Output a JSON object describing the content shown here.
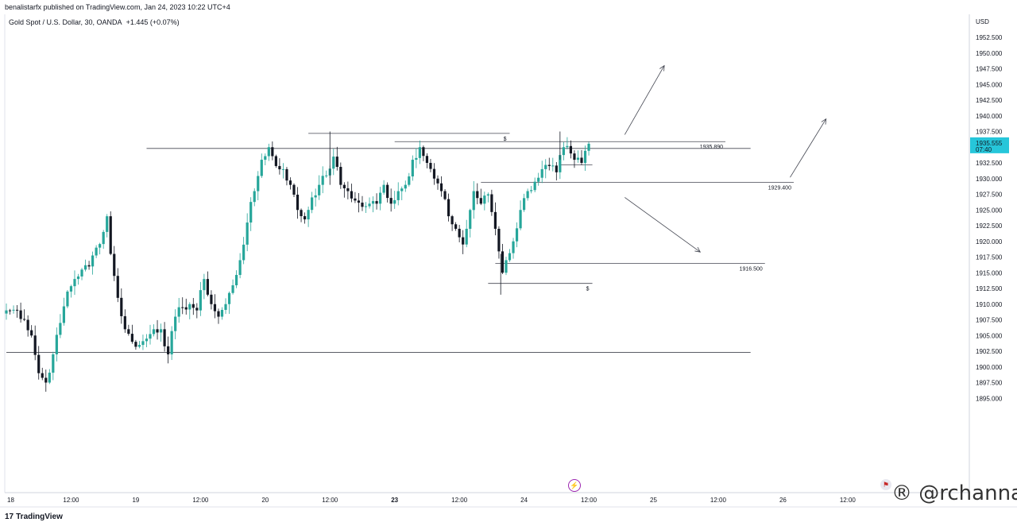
{
  "header": {
    "publisher": "benalistarfx published on TradingView.com, Jan 24, 2023 10:22 UTC+4",
    "symbol": "Gold Spot / U.S. Dollar, 30, OANDA",
    "change": "+1.445 (+0.07%)"
  },
  "footer": {
    "logo_text": "TradingView",
    "logo_mark": "17",
    "watermark": "® @rchanna"
  },
  "icons": {
    "bolt": "lightning-icon",
    "flag": "us-flag-icon"
  },
  "chart_data": {
    "type": "candlestick",
    "currency": "USD",
    "ylim": [
      1894.5,
      1954.5
    ],
    "y_ticks": [
      "1952.500",
      "1950.000",
      "1947.500",
      "1945.000",
      "1942.500",
      "1940.000",
      "1937.500",
      "1935.000",
      "1932.500",
      "1930.000",
      "1927.500",
      "1925.000",
      "1922.500",
      "1920.000",
      "1917.500",
      "1915.000",
      "1912.500",
      "1910.000",
      "1907.500",
      "1905.000",
      "1902.500",
      "1900.000",
      "1897.500",
      "1895.000"
    ],
    "x_ticks": [
      {
        "label": "18",
        "bar": 0
      },
      {
        "label": "12:00",
        "bar": 18
      },
      {
        "label": "19",
        "bar": 36
      },
      {
        "label": "12:00",
        "bar": 54
      },
      {
        "label": "20",
        "bar": 72
      },
      {
        "label": "12:00",
        "bar": 90
      },
      {
        "label": "23",
        "bar": 108
      },
      {
        "label": "12:00",
        "bar": 126
      },
      {
        "label": "24",
        "bar": 144
      },
      {
        "label": "12:00",
        "bar": 162
      },
      {
        "label": "25",
        "bar": 180
      },
      {
        "label": "12:00",
        "bar": 198
      },
      {
        "label": "26",
        "bar": 216
      },
      {
        "label": "12:00",
        "bar": 234
      }
    ],
    "last_price": "1935.555",
    "countdown": "07:40",
    "last_price_value": 1935.555,
    "close_anchors": [
      [
        0,
        1909
      ],
      [
        3,
        1909
      ],
      [
        5,
        1907.5
      ],
      [
        7,
        1905
      ],
      [
        9,
        1899
      ],
      [
        11,
        1897.5
      ],
      [
        13,
        1902
      ],
      [
        15,
        1907
      ],
      [
        17,
        1912
      ],
      [
        19,
        1914
      ],
      [
        21,
        1915.5
      ],
      [
        23,
        1916
      ],
      [
        25,
        1919
      ],
      [
        27,
        1921.5
      ],
      [
        28,
        1924
      ],
      [
        29,
        1918
      ],
      [
        31,
        1911
      ],
      [
        33,
        1906
      ],
      [
        35,
        1904
      ],
      [
        37,
        1903.5
      ],
      [
        39,
        1904.5
      ],
      [
        41,
        1906
      ],
      [
        43,
        1906
      ],
      [
        45,
        1902
      ],
      [
        47,
        1908
      ],
      [
        49,
        1909.5
      ],
      [
        51,
        1910
      ],
      [
        53,
        1909
      ],
      [
        55,
        1914
      ],
      [
        57,
        1910
      ],
      [
        59,
        1908
      ],
      [
        61,
        1910
      ],
      [
        63,
        1913
      ],
      [
        65,
        1917
      ],
      [
        67,
        1923
      ],
      [
        69,
        1928
      ],
      [
        71,
        1933
      ],
      [
        73,
        1935
      ],
      [
        75,
        1932
      ],
      [
        77,
        1931.5
      ],
      [
        79,
        1929
      ],
      [
        81,
        1925
      ],
      [
        83,
        1923.5
      ],
      [
        85,
        1927
      ],
      [
        87,
        1929
      ],
      [
        89,
        1930.5
      ],
      [
        91,
        1933.5
      ],
      [
        93,
        1929
      ],
      [
        95,
        1928
      ],
      [
        97,
        1926.5
      ],
      [
        99,
        1925.5
      ],
      [
        101,
        1926
      ],
      [
        103,
        1926
      ],
      [
        105,
        1929
      ],
      [
        107,
        1926
      ],
      [
        109,
        1928
      ],
      [
        111,
        1929
      ],
      [
        113,
        1933
      ],
      [
        115,
        1935
      ],
      [
        117,
        1932.5
      ],
      [
        119,
        1930
      ],
      [
        121,
        1928
      ],
      [
        123,
        1924
      ],
      [
        125,
        1922
      ],
      [
        127,
        1919.5
      ],
      [
        128,
        1922
      ],
      [
        130,
        1928
      ],
      [
        132,
        1926
      ],
      [
        134,
        1927.5
      ],
      [
        136,
        1922
      ],
      [
        138,
        1915
      ],
      [
        139,
        1917
      ],
      [
        141,
        1920
      ],
      [
        143,
        1925
      ],
      [
        145,
        1928
      ],
      [
        147,
        1929.5
      ],
      [
        149,
        1931.5
      ],
      [
        151,
        1932
      ],
      [
        153,
        1931
      ],
      [
        155,
        1935
      ],
      [
        157,
        1934
      ],
      [
        158,
        1933
      ],
      [
        160,
        1932.5
      ],
      [
        162,
        1935.555
      ]
    ],
    "levels": [
      {
        "name": "1935.890",
        "price": 1935.89,
        "bar_from": 108,
        "bar_to": 200,
        "label": "1935.890"
      },
      {
        "name": "upper-resistance",
        "price": 1934.8,
        "bar_from": 39,
        "bar_to": 207,
        "label": ""
      },
      {
        "name": "1929.400",
        "price": 1929.4,
        "bar_from": 132,
        "bar_to": 219,
        "label": "1929.400"
      },
      {
        "name": "1916.500",
        "price": 1916.5,
        "bar_from": 136,
        "bar_to": 211,
        "label": "1916.500"
      },
      {
        "name": "support",
        "price": 1902.3,
        "bar_from": 0,
        "bar_to": 207,
        "label": ""
      },
      {
        "name": "buy-side-liquidity",
        "price": 1937.2,
        "bar_from": 84,
        "bar_to": 140,
        "label": "$"
      },
      {
        "name": "sell-side-liquidity",
        "price": 1913.3,
        "bar_from": 134,
        "bar_to": 163,
        "label": "$"
      },
      {
        "name": "session-low-mark",
        "price": 1932.2,
        "bar_from": 154,
        "bar_to": 163,
        "label": ""
      }
    ],
    "arrows": [
      {
        "from": [
          172,
          1937.0
        ],
        "to": [
          183,
          1948.0
        ]
      },
      {
        "from": [
          218,
          1930.2
        ],
        "to": [
          228,
          1939.5
        ]
      },
      {
        "from": [
          172,
          1927.0
        ],
        "to": [
          193,
          1918.3
        ]
      }
    ]
  }
}
